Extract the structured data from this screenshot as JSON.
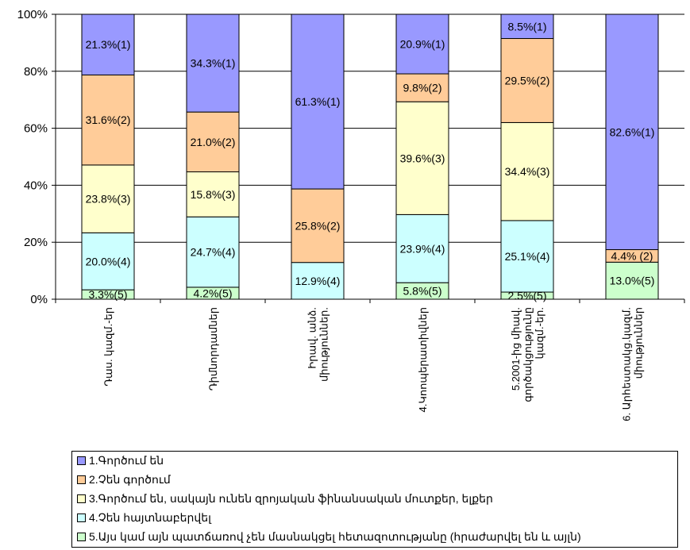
{
  "chart_data": {
    "type": "bar",
    "stacked": true,
    "percent": true,
    "ylim": [
      0,
      100
    ],
    "yticks": [
      "0%",
      "20%",
      "40%",
      "60%",
      "80%",
      "100%"
    ],
    "grid": true,
    "legend_position": "bottom",
    "categories": [
      [
        "Դաս. կազմ.-եր"
      ],
      [
        "Դիմնորդամներ"
      ],
      [
        "Իրավ. անձ.",
        "միություններ."
      ],
      [
        "4.Կոոպերատիվներ"
      ],
      [
        "5.2001-ից միավ.",
        "գործակցությունը",
        "կազմ.-եր."
      ],
      [
        "6. Արհեստակց.կազմ.",
        "միություններ"
      ]
    ],
    "series": [
      {
        "name": "1.Գործում են",
        "color": "#9999ff",
        "values": [
          21.3,
          34.3,
          61.3,
          20.9,
          8.5,
          82.6
        ],
        "labels": [
          "21.3%(1)",
          "34.3%(1)",
          "61.3%(1)",
          "20.9%(1)",
          "8.5%(1)",
          "82.6%(1)"
        ]
      },
      {
        "name": "2.Չեն գործում",
        "color": "#ffcc99",
        "values": [
          31.6,
          21.0,
          25.8,
          9.8,
          29.5,
          4.4
        ],
        "labels": [
          "31.6%(2)",
          "21.0%(2)",
          "25.8%(2)",
          "9.8%(2)",
          "29.5%(2)",
          "4.4% (2)"
        ]
      },
      {
        "name": "3.Գործում են, սակայն ունեն զրոյական ֆինանսական մուտքեր, ելքեր",
        "color": "#ffffcc",
        "values": [
          23.8,
          15.8,
          0,
          39.6,
          34.4,
          0
        ],
        "labels": [
          "23.8%(3)",
          "15.8%(3)",
          "",
          "39.6%(3)",
          "34.4%(3)",
          ""
        ]
      },
      {
        "name": "4.Չեն հայտնաբերվել",
        "color": "#ccffff",
        "values": [
          20.0,
          24.7,
          12.9,
          23.9,
          25.1,
          0
        ],
        "labels": [
          "20.0%(4)",
          "24.7%(4)",
          "12.9%(4)",
          "23.9%(4)",
          "25.1%(4)",
          ""
        ]
      },
      {
        "name": "5.Այս կամ այն պատճառով չեն մասնակցել հետազոտությանը (հրաժարվել են և այլն)",
        "color": "#ccffcc",
        "values": [
          3.3,
          4.2,
          0,
          5.8,
          2.5,
          13.0
        ],
        "labels": [
          "3.3%(5)",
          "4.2%(5)",
          "",
          "5.8%(5)",
          "2.5%(5)",
          "13.0%(5)"
        ]
      }
    ]
  }
}
